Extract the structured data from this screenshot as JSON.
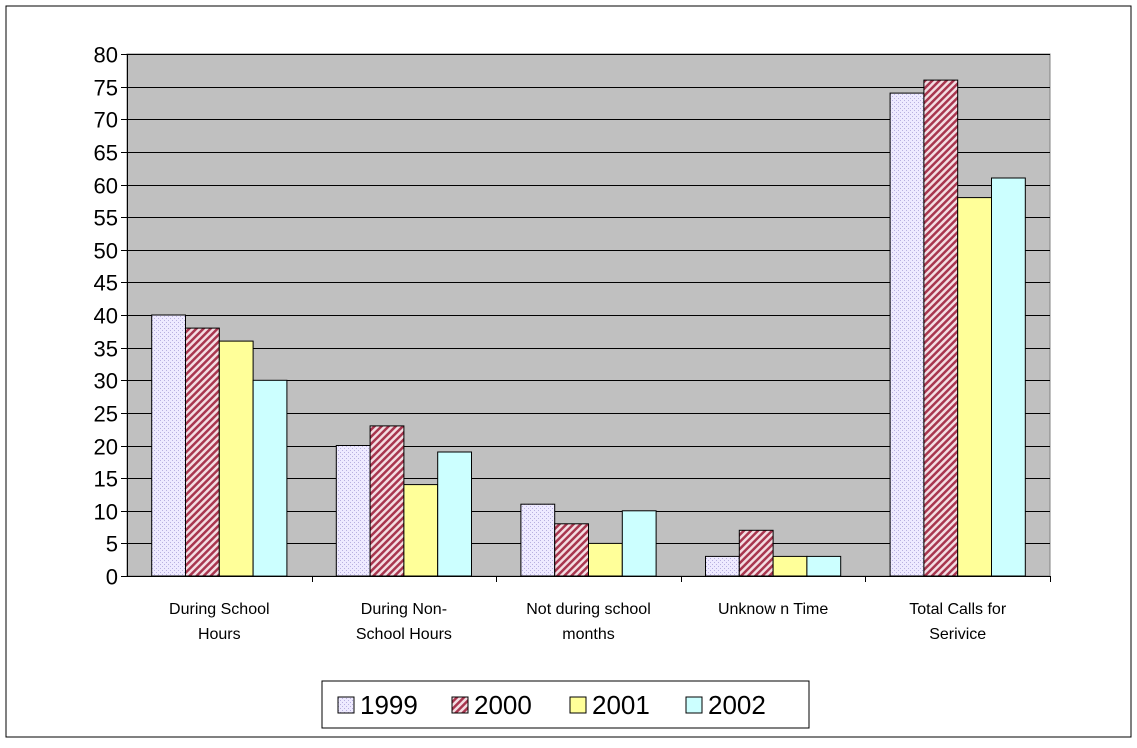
{
  "chart_data": {
    "type": "bar",
    "title": "",
    "xlabel": "",
    "ylabel": "",
    "categories": [
      [
        "During School",
        "Hours"
      ],
      [
        "During Non-",
        "School Hours"
      ],
      [
        "Not during school",
        "months"
      ],
      [
        "Unknow n Time"
      ],
      [
        "Total Calls for",
        "Serivice"
      ]
    ],
    "series": [
      {
        "name": "1999",
        "color": "#e8e4f8",
        "pattern": "dots",
        "values": [
          40,
          20,
          11,
          3,
          74
        ]
      },
      {
        "name": "2000",
        "color": "#c8697c",
        "pattern": "diagonal-hatch",
        "values": [
          38,
          23,
          8,
          7,
          76
        ]
      },
      {
        "name": "2001",
        "color": "#ffff99",
        "pattern": "solid",
        "values": [
          36,
          14,
          5,
          3,
          58
        ]
      },
      {
        "name": "2002",
        "color": "#ccffff",
        "pattern": "solid",
        "values": [
          30,
          19,
          10,
          3,
          61
        ]
      }
    ],
    "ylim": [
      0,
      80
    ],
    "ytick_step": 5,
    "grid": true,
    "plot_background": "#c0c0c0",
    "legend_position": "bottom"
  }
}
